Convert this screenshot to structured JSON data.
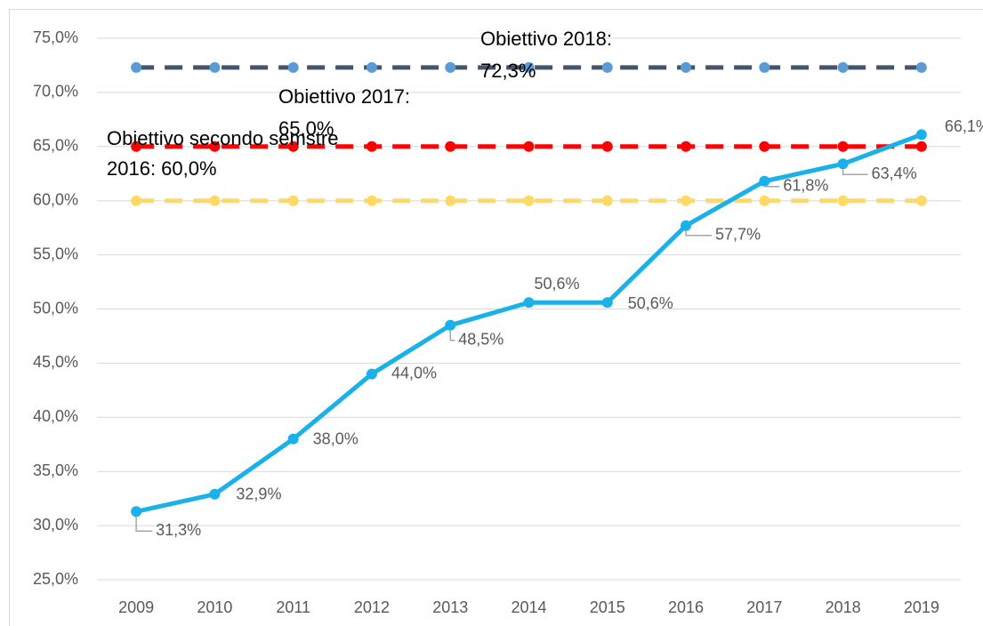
{
  "chart_data": {
    "type": "line",
    "categories": [
      "2009",
      "2010",
      "2011",
      "2012",
      "2013",
      "2014",
      "2015",
      "2016",
      "2017",
      "2018",
      "2019"
    ],
    "series": [
      {
        "color": "#1ab0ea",
        "values": [
          31.3,
          32.9,
          38.0,
          44.0,
          48.5,
          50.6,
          50.6,
          57.7,
          61.8,
          63.4,
          66.1
        ],
        "value_labels": [
          "31,3%",
          "32,9%",
          "38,0%",
          "44,0%",
          "48,5%",
          "50,6%",
          "50,6%",
          "57,7%",
          "61,8%",
          "63,4%",
          "66,1%"
        ]
      },
      {
        "color": "#44546a",
        "marker_color": "#5b9bd5",
        "dashed": true,
        "values": [
          72.3,
          72.3,
          72.3,
          72.3,
          72.3,
          72.3,
          72.3,
          72.3,
          72.3,
          72.3,
          72.3
        ]
      },
      {
        "color": "#ff0000",
        "marker_color": "#ff0000",
        "dashed": true,
        "values": [
          65.0,
          65.0,
          65.0,
          65.0,
          65.0,
          65.0,
          65.0,
          65.0,
          65.0,
          65.0,
          65.0
        ]
      },
      {
        "color": "#ffd966",
        "marker_color": "#ffd966",
        "dashed": true,
        "values": [
          60.0,
          60.0,
          60.0,
          60.0,
          60.0,
          60.0,
          60.0,
          60.0,
          60.0,
          60.0,
          60.0
        ]
      }
    ],
    "annotations": [
      {
        "lines": [
          "Obiettivo 2018:",
          "72,3%"
        ]
      },
      {
        "lines": [
          "Obiettivo 2017:",
          "65,0%"
        ]
      },
      {
        "lines": [
          "Obiettivo secondo semstre",
          "2016: 60,0%"
        ]
      }
    ],
    "ylim": [
      25,
      75
    ],
    "yticks": [
      {
        "value": 25,
        "label": "25,0%"
      },
      {
        "value": 30,
        "label": "30,0%"
      },
      {
        "value": 35,
        "label": "35,0%"
      },
      {
        "value": 40,
        "label": "40,0%"
      },
      {
        "value": 45,
        "label": "45,0%"
      },
      {
        "value": 50,
        "label": "50,0%"
      },
      {
        "value": 55,
        "label": "55,0%"
      },
      {
        "value": 60,
        "label": "60,0%"
      },
      {
        "value": 65,
        "label": "65,0%"
      },
      {
        "value": 70,
        "label": "70,0%"
      },
      {
        "value": 75,
        "label": "75,0%"
      }
    ],
    "grid": true
  }
}
